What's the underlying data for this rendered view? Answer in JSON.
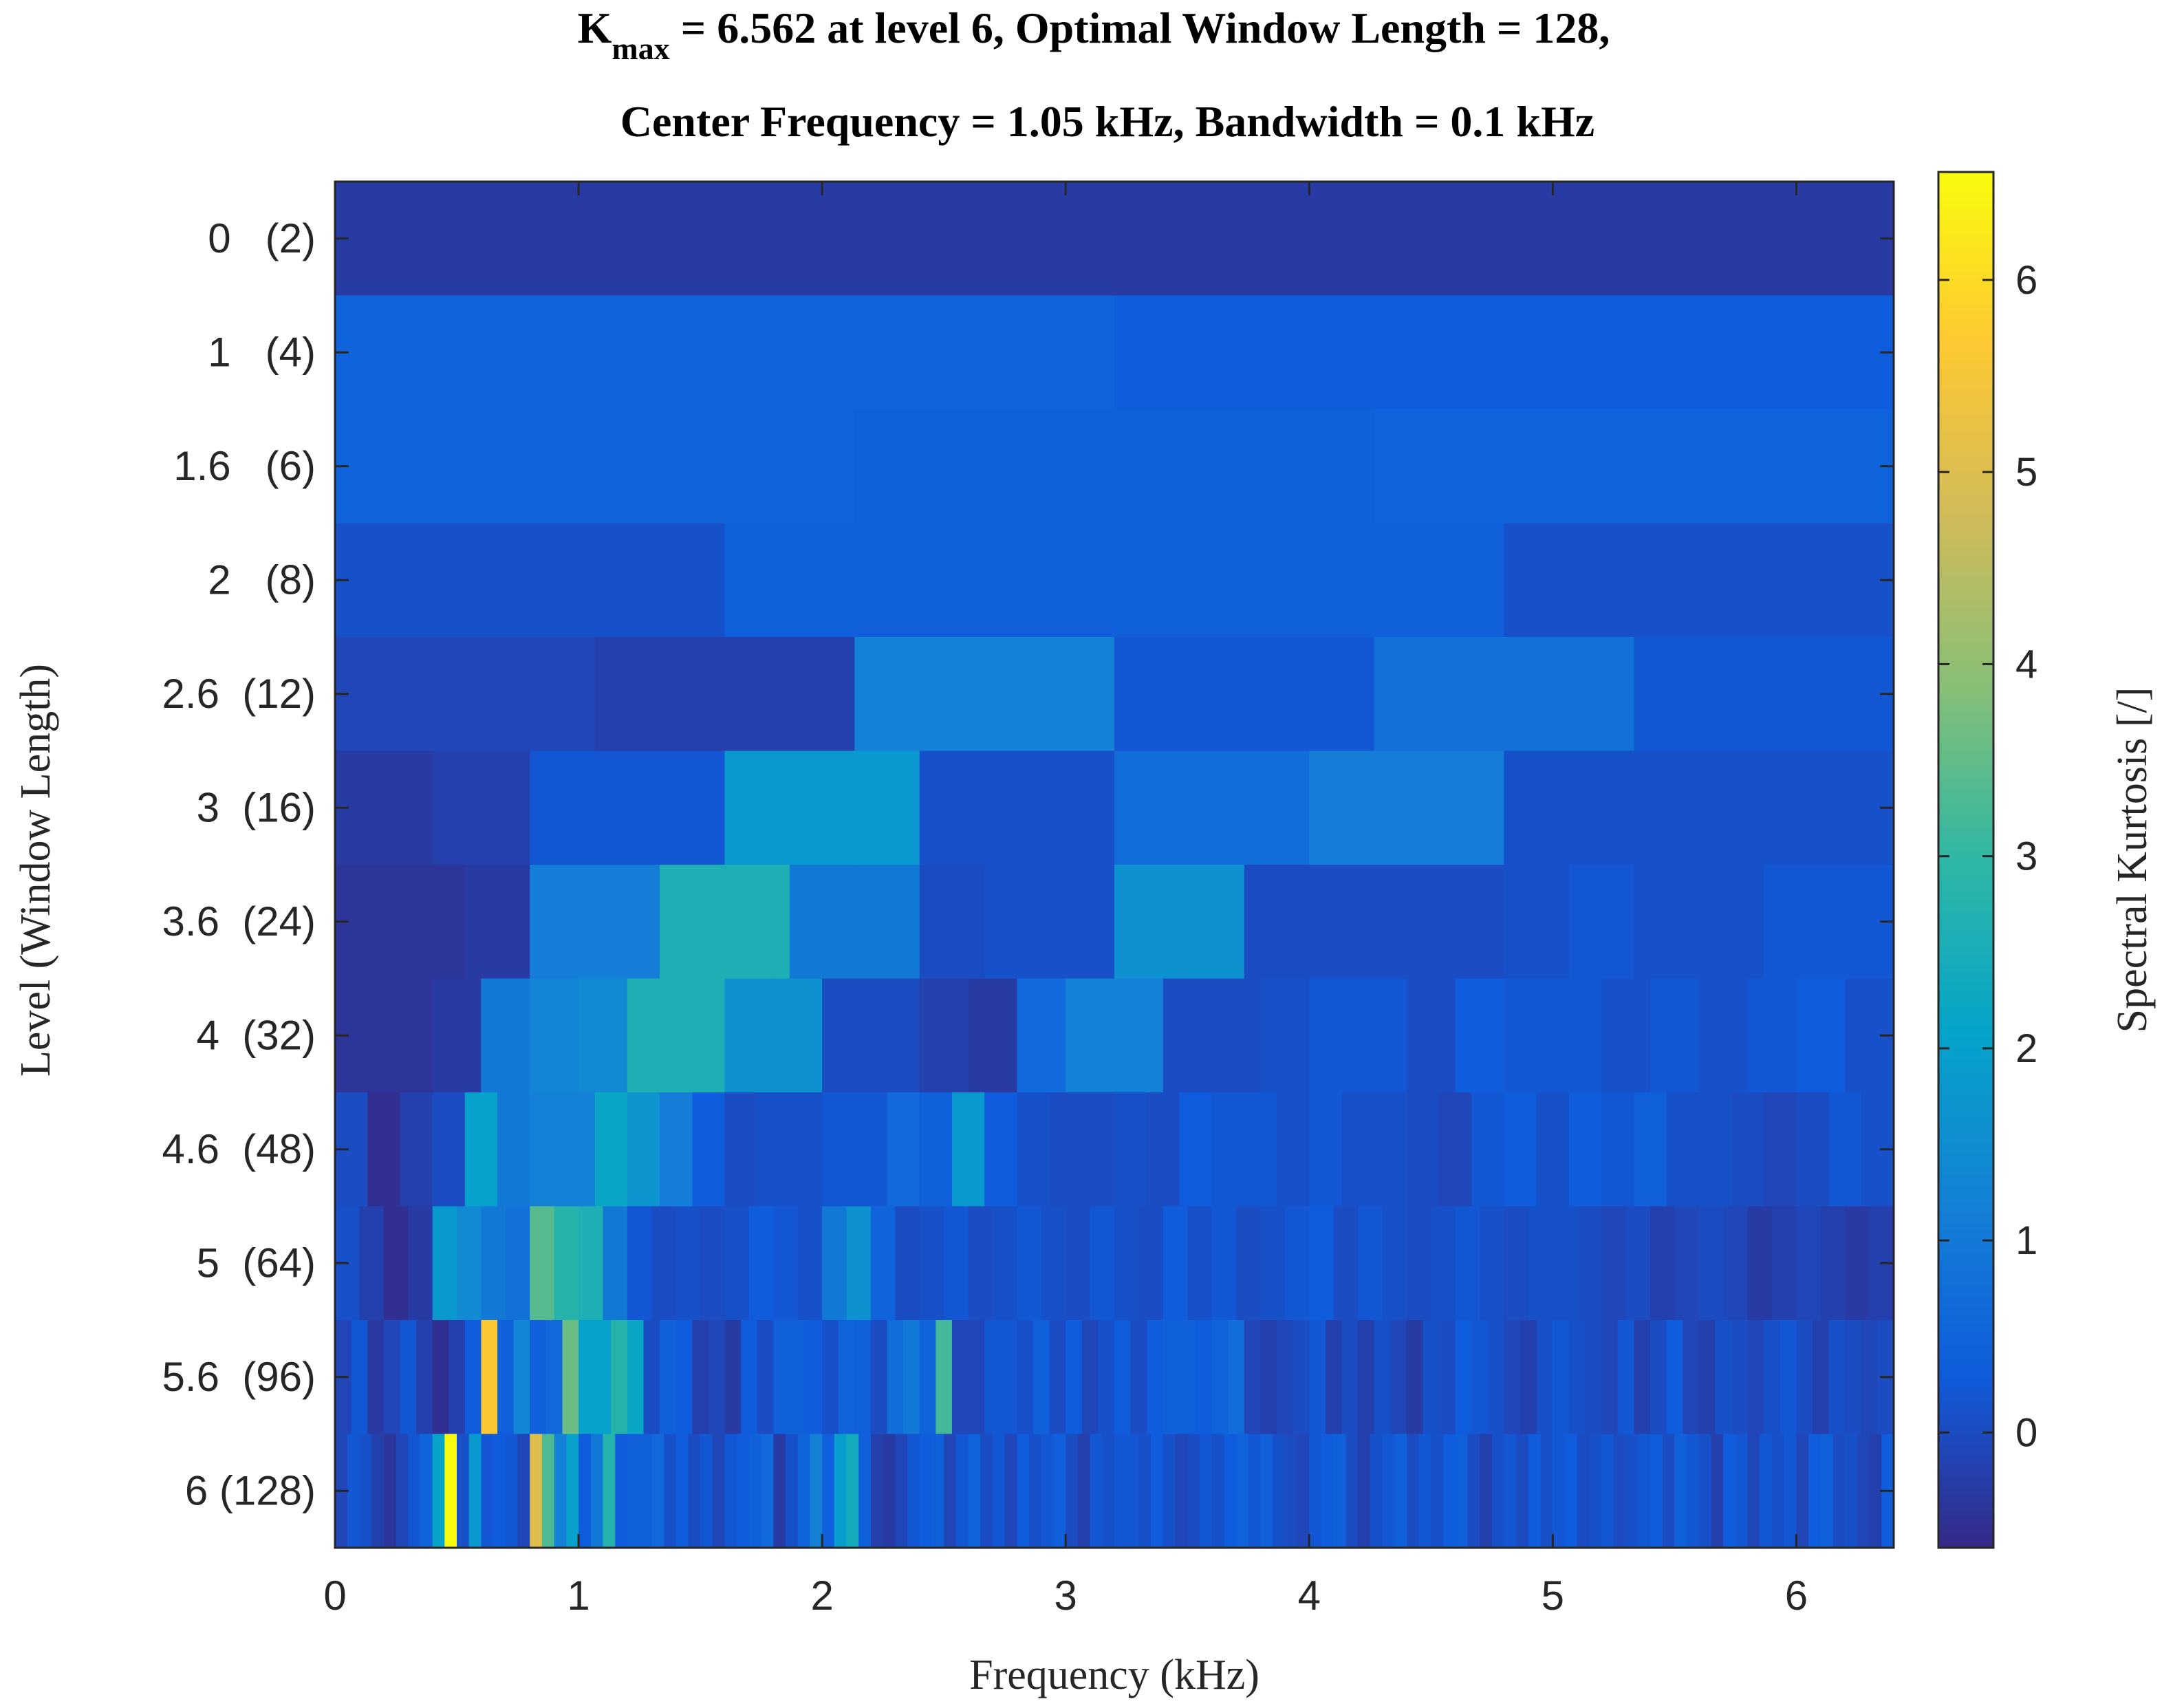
{
  "chart_data": {
    "type": "heatmap",
    "title_line1": {
      "main": "K",
      "subscript": "max",
      "rest": " = 6.562 at level 6, Optimal Window Length = 128,"
    },
    "title_line2": "Center Frequency = 1.05 kHz, Bandwidth = 0.1 kHz",
    "xlabel": "Frequency (kHz)",
    "ylabel": "Level (Window Length)",
    "colorbar_label": "Spectral Kurtosis [/]",
    "xlim": [
      0,
      6.4
    ],
    "x_ticks": [
      0,
      1,
      2,
      3,
      4,
      5,
      6
    ],
    "clim": [
      -0.6,
      6.562
    ],
    "colorbar_ticks": [
      0,
      1,
      2,
      3,
      4,
      5,
      6
    ],
    "grid": false,
    "colormap": "parula",
    "rows": [
      {
        "label": "0   (2)",
        "values": [
          -0.3,
          -0.3
        ]
      },
      {
        "label": "1   (4)",
        "values": [
          0.5,
          0.3
        ]
      },
      {
        "label": "1.6   (6)",
        "values": [
          0.5,
          0.4,
          0.5
        ]
      },
      {
        "label": "2   (8)",
        "values": [
          0.1,
          0.4,
          0.4,
          0.1
        ]
      },
      {
        "label": "2.6  (12)",
        "values": [
          -0.1,
          -0.2,
          1.2,
          0.2,
          0.8,
          0.2
        ]
      },
      {
        "label": "3  (16)",
        "values": [
          -0.3,
          -0.2,
          0.2,
          0.2,
          1.8,
          1.8,
          0.1,
          0.1,
          0.7,
          0.7,
          1.1,
          1.1,
          0.1,
          0.1,
          0.1,
          0.1
        ]
      },
      {
        "label": "3.6  (24)",
        "values": [
          -0.4,
          -0.4,
          -0.3,
          1.1,
          1.1,
          2.6,
          2.6,
          1.0,
          1.0,
          0.0,
          0.1,
          0.1,
          1.6,
          1.6,
          0.0,
          0.0,
          0.0,
          0.0,
          0.1,
          0.2,
          0.1,
          0.1,
          0.2,
          0.2
        ]
      },
      {
        "label": "4  (32)",
        "values": [
          -0.4,
          -0.4,
          -0.3,
          1.0,
          1.3,
          1.4,
          2.6,
          2.6,
          1.6,
          1.6,
          0.0,
          0.0,
          -0.2,
          -0.3,
          0.6,
          1.2,
          1.2,
          0.0,
          0.0,
          0.1,
          0.2,
          0.2,
          0.0,
          0.3,
          0.2,
          0.2,
          0.1,
          0.2,
          0.1,
          0.2,
          0.3,
          0.1
        ]
      },
      {
        "label": "4.6  (48)",
        "values": [
          0.0,
          -0.5,
          -0.2,
          0.0,
          2.0,
          1.0,
          1.2,
          1.2,
          2.2,
          1.7,
          1.1,
          0.3,
          0.0,
          0.1,
          0.1,
          0.2,
          0.2,
          0.6,
          0.4,
          1.8,
          0.3,
          0.1,
          0.0,
          0.0,
          0.1,
          0.0,
          0.3,
          0.2,
          0.2,
          0.1,
          0.2,
          0.1,
          0.1,
          0.0,
          -0.1,
          0.2,
          0.3,
          0.1,
          0.3,
          0.2,
          0.4,
          0.1,
          0.1,
          0.0,
          -0.1,
          0.0,
          0.2,
          0.1
        ]
      },
      {
        "label": "5  (64)",
        "values": [
          0.1,
          -0.2,
          -0.5,
          -0.3,
          1.8,
          1.4,
          1.0,
          0.8,
          3.4,
          2.8,
          2.6,
          1.0,
          0.2,
          0.0,
          0.1,
          0.0,
          0.1,
          0.3,
          0.2,
          0.1,
          1.0,
          1.6,
          0.5,
          0.0,
          0.1,
          0.2,
          0.0,
          0.1,
          0.2,
          0.1,
          0.0,
          0.2,
          0.1,
          0.0,
          0.3,
          0.1,
          0.2,
          0.0,
          0.1,
          0.2,
          0.3,
          0.0,
          0.2,
          0.1,
          0.0,
          0.1,
          0.2,
          0.1,
          0.0,
          0.1,
          0.1,
          0.0,
          -0.1,
          0.0,
          -0.2,
          -0.1,
          0.0,
          -0.1,
          -0.3,
          -0.2,
          -0.1,
          -0.2,
          -0.3,
          -0.2
        ]
      },
      {
        "label": "5.6  (96)",
        "values": [
          -0.1,
          0.2,
          -0.3,
          -0.1,
          0.2,
          -0.2,
          -0.5,
          -0.2,
          0.3,
          5.6,
          0.4,
          1.3,
          0.4,
          0.6,
          3.6,
          2.0,
          2.0,
          2.8,
          2.2,
          0.0,
          0.4,
          0.3,
          -0.2,
          -0.1,
          -0.3,
          0.3,
          0.0,
          0.4,
          0.4,
          0.3,
          0.1,
          0.5,
          0.4,
          0.0,
          0.7,
          1.0,
          0.5,
          3.2,
          -0.1,
          -0.1,
          0.2,
          0.2,
          0.1,
          0.4,
          0.0,
          0.3,
          -0.1,
          0.1,
          0.3,
          0.0,
          0.3,
          0.4,
          0.4,
          0.3,
          0.5,
          0.7,
          -0.1,
          -0.2,
          -0.1,
          0.0,
          0.2,
          -0.2,
          0.0,
          -0.2,
          0.1,
          -0.1,
          -0.3,
          0.1,
          0.0,
          0.3,
          0.2,
          0.1,
          -0.1,
          -0.2,
          0.1,
          0.2,
          0.1,
          0.0,
          -0.1,
          0.2,
          -0.2,
          0.0,
          0.3,
          -0.1,
          -0.2,
          0.1,
          0.0,
          -0.1,
          0.1,
          0.2,
          0.0,
          -0.2,
          0.1,
          0.0,
          -0.1,
          0.0
        ]
      },
      {
        "label": "6 (128)",
        "values": [
          -0.1,
          0.2,
          0.1,
          -0.2,
          -0.4,
          -0.1,
          0.2,
          0.5,
          2.1,
          6.56,
          0.1,
          1.8,
          0.2,
          0.3,
          0.2,
          -0.1,
          5.0,
          3.3,
          1.2,
          2.0,
          0.3,
          1.0,
          2.8,
          0.3,
          0.4,
          0.4,
          0.6,
          0.1,
          0.3,
          0.0,
          0.2,
          -0.1,
          0.2,
          0.3,
          0.4,
          0.6,
          -0.3,
          0.1,
          0.5,
          1.2,
          0.4,
          1.9,
          2.4,
          0.4,
          -0.2,
          -0.3,
          -0.1,
          0.2,
          0.3,
          0.4,
          -0.1,
          0.2,
          0.5,
          0.0,
          0.2,
          -0.1,
          0.3,
          0.1,
          0.2,
          0.4,
          0.0,
          -0.2,
          0.2,
          0.1,
          0.2,
          0.2,
          0.1,
          0.3,
          0.1,
          -0.1,
          0.0,
          0.2,
          0.1,
          0.3,
          0.5,
          0.2,
          0.4,
          0.1,
          0.0,
          -0.1,
          0.2,
          0.3,
          0.4,
          0.0,
          -0.2,
          0.1,
          0.2,
          0.4,
          0.0,
          0.2,
          0.1,
          0.3,
          0.4,
          0.0,
          -0.2,
          0.1,
          0.2,
          0.0,
          0.3,
          0.1,
          0.2,
          0.3,
          0.0,
          0.1,
          0.2,
          0.0,
          0.1,
          0.2,
          0.3,
          0.0,
          0.4,
          0.2,
          0.1,
          -0.2,
          0.3,
          0.2,
          -0.1,
          0.2,
          0.1,
          0.2,
          -0.1,
          0.3,
          0.4,
          0.0,
          0.1,
          -0.1,
          -0.2,
          0.3
        ]
      }
    ]
  }
}
